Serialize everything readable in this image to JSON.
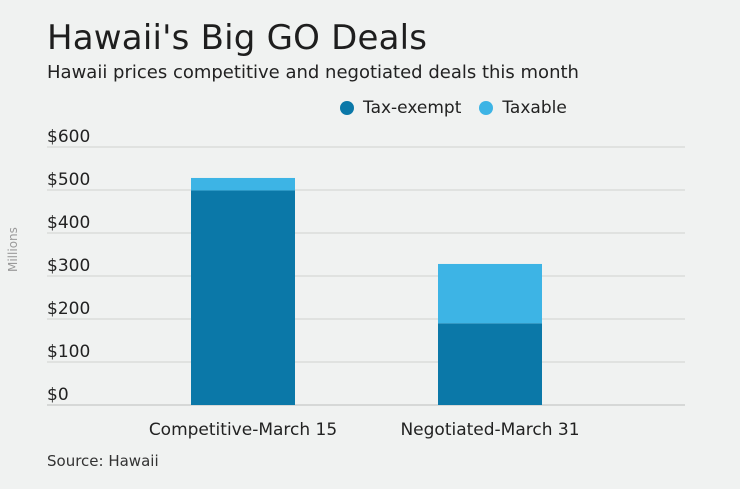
{
  "chart_data": {
    "type": "bar",
    "stacked": true,
    "title": "Hawaii's Big GO Deals",
    "subtitle": "Hawaii prices competitive and negotiated deals this month",
    "ylabel": "Millions",
    "source": "Source: Hawaii",
    "categories": [
      "Competitive-March 15",
      "Negotiated-March 31"
    ],
    "series": [
      {
        "name": "Tax-exempt",
        "color": "#0b78a8",
        "values": [
          499,
          190
        ]
      },
      {
        "name": "Taxable",
        "color": "#3db4e5",
        "values": [
          29,
          138
        ]
      }
    ],
    "ylim": [
      0,
      600
    ],
    "yticks": [
      "$0",
      "$100",
      "$200",
      "$300",
      "$400",
      "$500",
      "$600"
    ],
    "grid": true,
    "legend_position": "top"
  }
}
